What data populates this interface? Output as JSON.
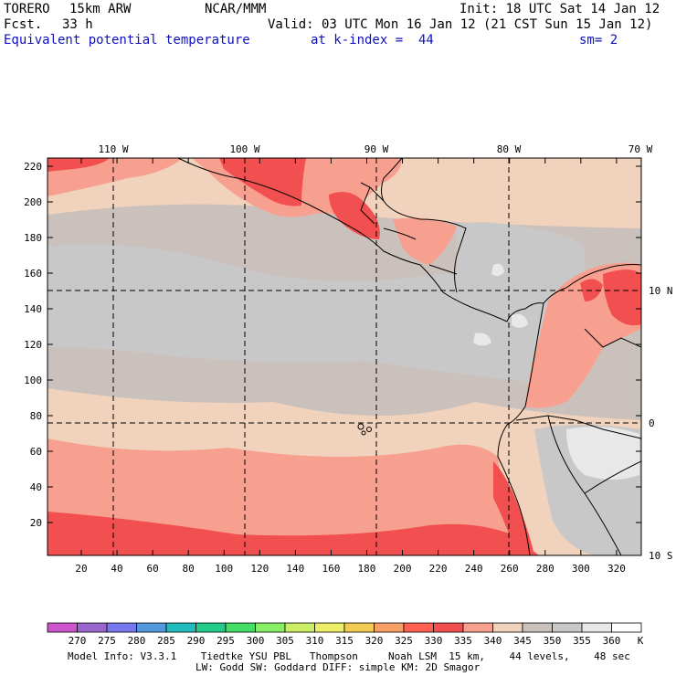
{
  "header": {
    "model": "TORERO",
    "resolution": "15km ARW",
    "center": "NCAR/MMM",
    "init": "Init: 18 UTC Sat 14 Jan 12",
    "fcst_label": "Fcst.",
    "fcst_value": "33 h",
    "valid": "Valid: 03 UTC Mon 16 Jan 12 (21 CST Sun 15 Jan 12)",
    "field": "Equivalent potential temperature",
    "level": "at k-index =  44",
    "smooth": "sm= 2"
  },
  "map": {
    "lon_labels": [
      "110 W",
      "100 W",
      "90 W",
      "80 W",
      "70 W"
    ],
    "lat_labels": [
      "10 N",
      "0",
      "10 S"
    ],
    "y_ticks": [
      "220",
      "200",
      "180",
      "160",
      "140",
      "120",
      "100",
      "80",
      "60",
      "40",
      "20"
    ],
    "x_ticks": [
      "20",
      "40",
      "60",
      "80",
      "100",
      "120",
      "140",
      "160",
      "180",
      "200",
      "220",
      "240",
      "260",
      "280",
      "300",
      "320"
    ]
  },
  "colorbar": {
    "labels": [
      "270",
      "275",
      "280",
      "285",
      "290",
      "295",
      "300",
      "305",
      "310",
      "315",
      "320",
      "325",
      "330",
      "335",
      "340",
      "345",
      "350",
      "355",
      "360"
    ],
    "unit": "K",
    "colors": [
      "#cc55cc",
      "#9966cc",
      "#7777ee",
      "#5599dd",
      "#22bbbb",
      "#22cc88",
      "#44dd66",
      "#88ee66",
      "#ccee66",
      "#eeee66",
      "#f3cc55",
      "#f7a066",
      "#ff6050",
      "#f25050",
      "#f8a090",
      "#f1d2bc",
      "#cbc1bc",
      "#c8c8c8",
      "#e8e8e8",
      "#ffffff"
    ]
  },
  "footer": {
    "line1": "Model Info: V3.3.1    Tiedtke YSU PBL   Thompson     Noah LSM  15 km,    44 levels,    48 sec",
    "line2": "LW: Godd SW: Goddard DIFF: simple KM: 2D Smagor"
  }
}
